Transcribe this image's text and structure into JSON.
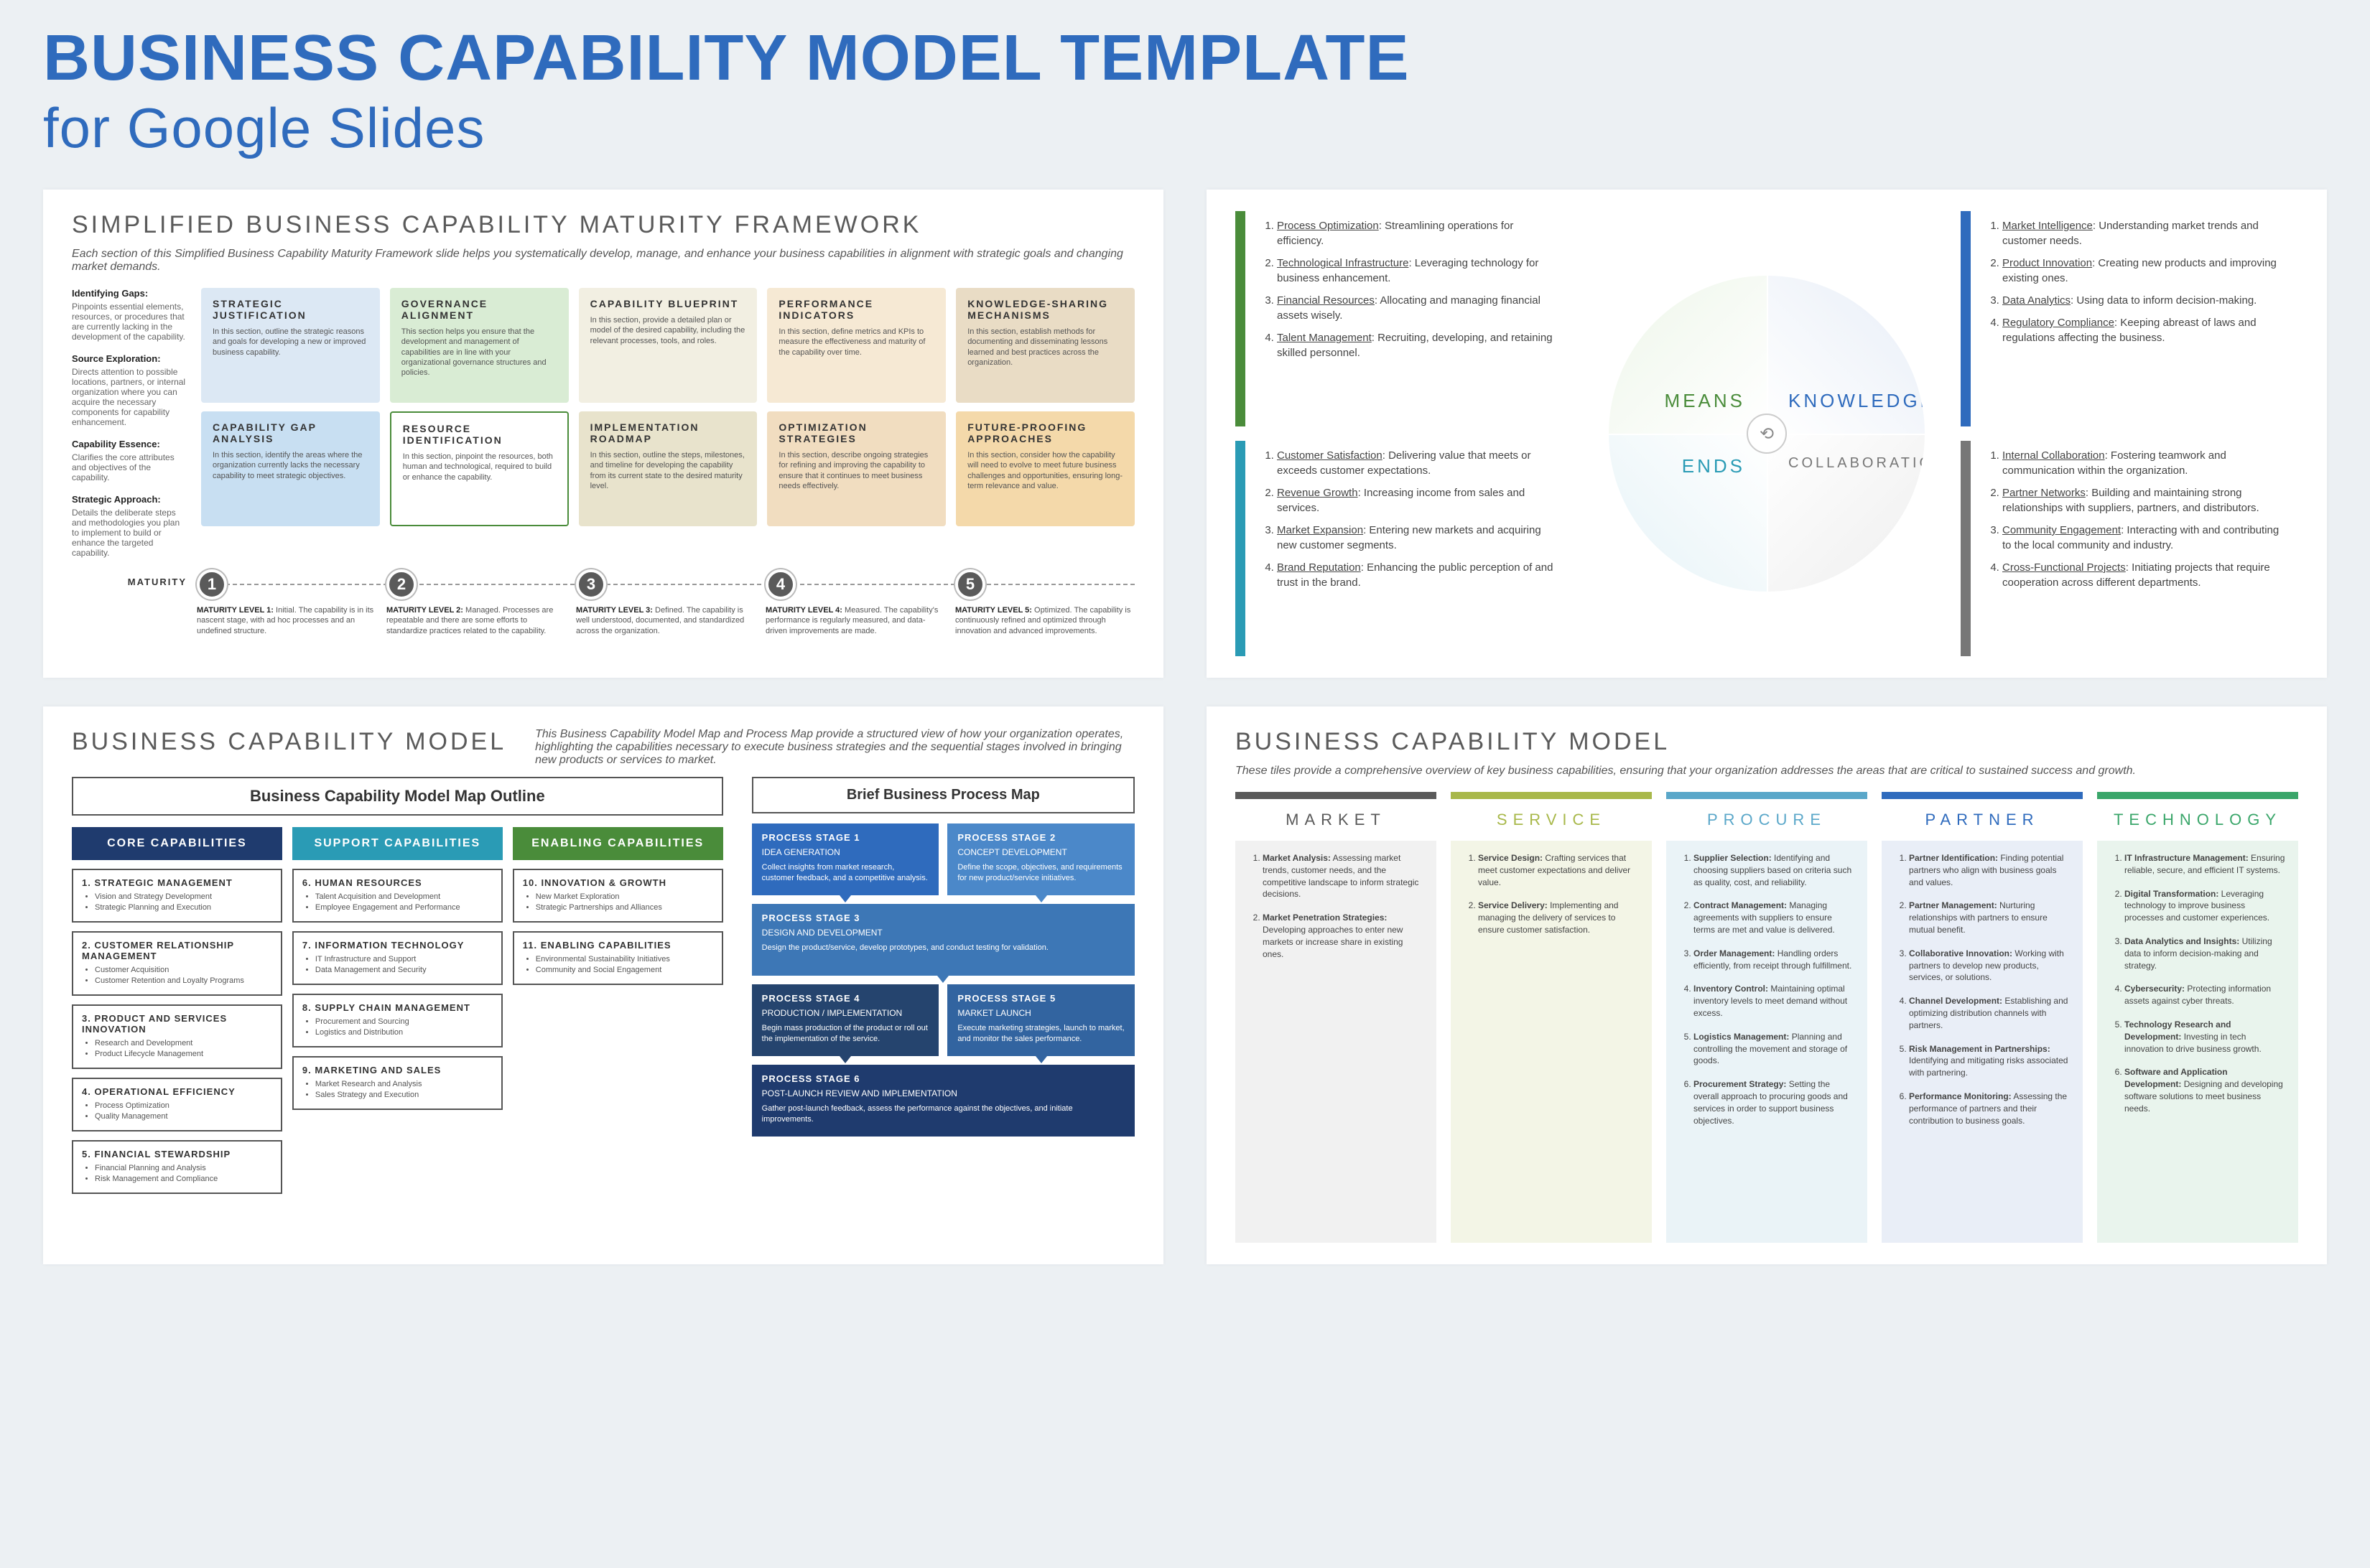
{
  "header": {
    "line1": "BUSINESS CAPABILITY MODEL TEMPLATE",
    "line2": "for Google Slides"
  },
  "colors": {
    "blue": "#2f6bbd",
    "navy": "#1f3b6e",
    "teal": "#2a9bb5",
    "green": "#4a8c3a",
    "grey": "#777777",
    "orange": "#e9c79b",
    "peach": "#f4d9b7",
    "tl_c1": "#dce8f4",
    "tl_c1b": "#c8dff2",
    "tl_c2": "#d9ecd4",
    "tl_c2b": "#fff",
    "tl_c3": "#f2efe2",
    "tl_c3b": "#e8e3cc",
    "tl_c4": "#f6e9d4",
    "tl_c4b": "#f1ddc0",
    "tl_c5": "#e9dcc5",
    "tl_c5b": "#f4d9aa",
    "br_market": "#5a5a5a",
    "br_market_bg": "#f1f1f1",
    "br_service": "#a8b84a",
    "br_service_bg": "#f3f5e6",
    "br_procure": "#5aa7c9",
    "br_procure_bg": "#eaf3f7",
    "br_partner": "#2f6bbd",
    "br_partner_bg": "#e9eef7",
    "br_tech": "#3aa66a",
    "br_tech_bg": "#e9f4ed"
  },
  "tl": {
    "title": "SIMPLIFIED BUSINESS CAPABILITY MATURITY FRAMEWORK",
    "sub": "Each section of this Simplified Business Capability Maturity Framework slide helps you systematically develop, manage, and enhance your business capabilities in alignment with strategic goals and changing market demands.",
    "side": [
      {
        "h": "Identifying Gaps:",
        "t": "Pinpoints essential elements, resources, or procedures that are currently lacking in the development of the capability."
      },
      {
        "h": "Source Exploration:",
        "t": "Directs attention to possible locations, partners, or internal organization where you can acquire the necessary components for capability enhancement."
      },
      {
        "h": "Capability Essence:",
        "t": "Clarifies the core attributes and objectives of the capability."
      },
      {
        "h": "Strategic Approach:",
        "t": "Details the deliberate steps and methodologies you plan to implement to build or enhance the targeted capability."
      }
    ],
    "maturity_label": "MATURITY",
    "cols": [
      {
        "top": {
          "h": "STRATEGIC JUSTIFICATION",
          "t": "In this section, outline the strategic reasons and goals for developing a new or improved business capability."
        },
        "bot": {
          "h": "CAPABILITY GAP ANALYSIS",
          "t": "In this section, identify the areas where the organization currently lacks the necessary capability to meet strategic objectives."
        },
        "num": "1",
        "mt": "MATURITY LEVEL 1:",
        "md": "Initial. The capability is in its nascent stage, with ad hoc processes and an undefined structure."
      },
      {
        "top": {
          "h": "GOVERNANCE ALIGNMENT",
          "t": "This section helps you ensure that the development and management of capabilities are in line with your organizational governance structures and policies."
        },
        "bot": {
          "h": "RESOURCE IDENTIFICATION",
          "t": "In this section, pinpoint the resources, both human and technological, required to build or enhance the capability."
        },
        "num": "2",
        "mt": "MATURITY LEVEL 2:",
        "md": "Managed. Processes are repeatable and there are some efforts to standardize practices related to the capability."
      },
      {
        "top": {
          "h": "CAPABILITY BLUEPRINT",
          "t": "In this section, provide a detailed plan or model of the desired capability, including the relevant processes, tools, and roles."
        },
        "bot": {
          "h": "IMPLEMENTATION ROADMAP",
          "t": "In this section, outline the steps, milestones, and timeline for developing the capability from its current state to the desired maturity level."
        },
        "num": "3",
        "mt": "MATURITY LEVEL 3:",
        "md": "Defined. The capability is well understood, documented, and standardized across the organization."
      },
      {
        "top": {
          "h": "PERFORMANCE INDICATORS",
          "t": "In this section, define metrics and KPIs to measure the effectiveness and maturity of the capability over time."
        },
        "bot": {
          "h": "OPTIMIZATION STRATEGIES",
          "t": "In this section, describe ongoing strategies for refining and improving the capability to ensure that it continues to meet business needs effectively."
        },
        "num": "4",
        "mt": "MATURITY LEVEL 4:",
        "md": "Measured. The capability's performance is regularly measured, and data-driven improvements are made."
      },
      {
        "top": {
          "h": "KNOWLEDGE-SHARING MECHANISMS",
          "t": "In this section, establish methods for documenting and disseminating lessons learned and best practices across the organization."
        },
        "bot": {
          "h": "FUTURE-PROOFING APPROACHES",
          "t": "In this section, consider how the capability will need to evolve to meet future business challenges and opportunities, ensuring long-term relevance and value."
        },
        "num": "5",
        "mt": "MATURITY LEVEL 5:",
        "md": "Optimized. The capability is continuously refined and optimized through innovation and advanced improvements."
      }
    ]
  },
  "tr": {
    "quads": {
      "means": "MEANS",
      "knowledge": "KNOWLEDGE",
      "ends": "ENDS",
      "collab": "COLLABORATION",
      "hub": "⟲"
    },
    "means": [
      {
        "t": "Process Optimization",
        "d": "Streamlining operations for efficiency."
      },
      {
        "t": "Technological Infrastructure",
        "d": "Leveraging technology for business enhancement."
      },
      {
        "t": "Financial Resources",
        "d": "Allocating and managing financial assets wisely."
      },
      {
        "t": "Talent Management",
        "d": "Recruiting, developing, and retaining skilled personnel."
      }
    ],
    "knowledge": [
      {
        "t": "Market Intelligence",
        "d": "Understanding market trends and customer needs."
      },
      {
        "t": "Product Innovation",
        "d": "Creating new products and improving existing ones."
      },
      {
        "t": "Data Analytics",
        "d": "Using data to inform decision-making."
      },
      {
        "t": "Regulatory Compliance",
        "d": "Keeping abreast of laws and regulations affecting the business."
      }
    ],
    "ends": [
      {
        "t": "Customer Satisfaction",
        "d": "Delivering value that meets or exceeds customer expectations."
      },
      {
        "t": "Revenue Growth",
        "d": "Increasing income from sales and services."
      },
      {
        "t": "Market Expansion",
        "d": "Entering new markets and acquiring new customer segments."
      },
      {
        "t": "Brand Reputation",
        "d": "Enhancing the public perception of and trust in the brand."
      }
    ],
    "collab": [
      {
        "t": "Internal Collaboration",
        "d": "Fostering teamwork and communication within the organization."
      },
      {
        "t": "Partner Networks",
        "d": "Building and maintaining strong relationships with suppliers, partners, and distributors."
      },
      {
        "t": "Community Engagement",
        "d": "Interacting with and contributing to the local community and industry."
      },
      {
        "t": "Cross-Functional Projects",
        "d": "Initiating projects that require cooperation across different departments."
      }
    ]
  },
  "bl": {
    "title": "BUSINESS CAPABILITY MODEL",
    "sub": "This Business Capability Model Map and Process Map provide a structured view of how your organization operates, highlighting the capabilities necessary to execute business strategies and the sequential stages involved in bringing new products or services to market.",
    "map_title": "Business Capability Model Map Outline",
    "proc_title": "Brief Business Process Map",
    "core_h": "CORE CAPABILITIES",
    "support_h": "SUPPORT CAPABILITIES",
    "enable_h": "ENABLING CAPABILITIES",
    "core": [
      {
        "h": "1. STRATEGIC MANAGEMENT",
        "b": [
          "Vision and Strategy Development",
          "Strategic Planning and Execution"
        ]
      },
      {
        "h": "2. CUSTOMER RELATIONSHIP MANAGEMENT",
        "b": [
          "Customer Acquisition",
          "Customer Retention and Loyalty Programs"
        ]
      },
      {
        "h": "3. PRODUCT AND SERVICES INNOVATION",
        "b": [
          "Research and Development",
          "Product Lifecycle Management"
        ]
      },
      {
        "h": "4. OPERATIONAL EFFICIENCY",
        "b": [
          "Process Optimization",
          "Quality Management"
        ]
      },
      {
        "h": "5. FINANCIAL STEWARDSHIP",
        "b": [
          "Financial Planning and Analysis",
          "Risk Management and Compliance"
        ]
      }
    ],
    "support": [
      {
        "h": "6. HUMAN RESOURCES",
        "b": [
          "Talent Acquisition and Development",
          "Employee Engagement and Performance"
        ]
      },
      {
        "h": "7. INFORMATION TECHNOLOGY",
        "b": [
          "IT Infrastructure and Support",
          "Data Management and Security"
        ]
      },
      {
        "h": "8. SUPPLY CHAIN MANAGEMENT",
        "b": [
          "Procurement and Sourcing",
          "Logistics and Distribution"
        ]
      },
      {
        "h": "9. MARKETING AND SALES",
        "b": [
          "Market Research and Analysis",
          "Sales Strategy and Execution"
        ]
      }
    ],
    "enable": [
      {
        "h": "10. INNOVATION & GROWTH",
        "b": [
          "New Market Exploration",
          "Strategic Partnerships and Alliances"
        ]
      },
      {
        "h": "11. ENABLING CAPABILITIES",
        "b": [
          "Environmental Sustainability Initiatives",
          "Community and Social Engagement"
        ]
      }
    ],
    "stages": [
      {
        "n": "PROCESS STAGE 1",
        "s": "IDEA GENERATION",
        "d": "Collect insights from market research, customer feedback, and a competitive analysis.",
        "c": "#2f6bbd"
      },
      {
        "n": "PROCESS STAGE 2",
        "s": "CONCEPT DEVELOPMENT",
        "d": "Define the scope, objectives, and requirements for new product/service initiatives.",
        "c": "#4b88c9"
      },
      {
        "n": "PROCESS STAGE 3",
        "s": "DESIGN AND DEVELOPMENT",
        "d": "Design the product/service, develop prototypes, and conduct testing for validation.",
        "c": "#3d77b6",
        "full": true
      },
      {
        "n": "PROCESS STAGE 4",
        "s": "PRODUCTION / IMPLEMENTATION",
        "d": "Begin mass production of the product or roll out the implementation of the service.",
        "c": "#25446e"
      },
      {
        "n": "PROCESS STAGE 5",
        "s": "MARKET LAUNCH",
        "d": "Execute marketing strategies, launch to market, and monitor the sales performance.",
        "c": "#3264a0"
      },
      {
        "n": "PROCESS STAGE 6",
        "s": "POST-LAUNCH REVIEW AND IMPLEMENTATION",
        "d": "Gather post-launch feedback, assess the performance against the objectives, and initiate improvements.",
        "c": "#1f3b6e",
        "full": true
      }
    ]
  },
  "br": {
    "title": "BUSINESS CAPABILITY MODEL",
    "sub": "These tiles provide a comprehensive overview of key business capabilities, ensuring that your organization addresses the areas that are critical to sustained success and growth.",
    "cols": [
      {
        "h": "MARKET",
        "items": [
          {
            "t": "Market Analysis:",
            "d": "Assessing market trends, customer needs, and the competitive landscape to inform strategic decisions."
          },
          {
            "t": "Market Penetration Strategies:",
            "d": "Developing approaches to enter new markets or increase share in existing ones."
          }
        ]
      },
      {
        "h": "SERVICE",
        "items": [
          {
            "t": "Service Design:",
            "d": "Crafting services that meet customer expectations and deliver value."
          },
          {
            "t": "Service Delivery:",
            "d": "Implementing and managing the delivery of services to ensure customer satisfaction."
          }
        ]
      },
      {
        "h": "PROCURE",
        "items": [
          {
            "t": "Supplier Selection:",
            "d": "Identifying and choosing suppliers based on criteria such as quality, cost, and reliability."
          },
          {
            "t": "Contract Management:",
            "d": "Managing agreements with suppliers to ensure terms are met and value is delivered."
          },
          {
            "t": "Order Management:",
            "d": "Handling orders efficiently, from receipt through fulfillment."
          },
          {
            "t": "Inventory Control:",
            "d": "Maintaining optimal inventory levels to meet demand without excess."
          },
          {
            "t": "Logistics Management:",
            "d": "Planning and controlling the movement and storage of goods."
          },
          {
            "t": "Procurement Strategy:",
            "d": "Setting the overall approach to procuring goods and services in order to support business objectives."
          }
        ]
      },
      {
        "h": "PARTNER",
        "items": [
          {
            "t": "Partner Identification:",
            "d": "Finding potential partners who align with business goals and values."
          },
          {
            "t": "Partner Management:",
            "d": "Nurturing relationships with partners to ensure mutual benefit."
          },
          {
            "t": "Collaborative Innovation:",
            "d": "Working with partners to develop new products, services, or solutions."
          },
          {
            "t": "Channel Development:",
            "d": "Establishing and optimizing distribution channels with partners."
          },
          {
            "t": "Risk Management in Partnerships:",
            "d": "Identifying and mitigating risks associated with partnering."
          },
          {
            "t": "Performance Monitoring:",
            "d": "Assessing the performance of partners and their contribution to business goals."
          }
        ]
      },
      {
        "h": "TECHNOLOGY",
        "items": [
          {
            "t": "IT Infrastructure Management:",
            "d": "Ensuring reliable, secure, and efficient IT systems."
          },
          {
            "t": "Digital Transformation:",
            "d": "Leveraging technology to improve business processes and customer experiences."
          },
          {
            "t": "Data Analytics and Insights:",
            "d": "Utilizing data to inform decision-making and strategy."
          },
          {
            "t": "Cybersecurity:",
            "d": "Protecting information assets against cyber threats."
          },
          {
            "t": "Technology Research and Development:",
            "d": "Investing in tech innovation to drive business growth."
          },
          {
            "t": "Software and Application Development:",
            "d": "Designing and developing software solutions to meet business needs."
          }
        ]
      }
    ]
  }
}
